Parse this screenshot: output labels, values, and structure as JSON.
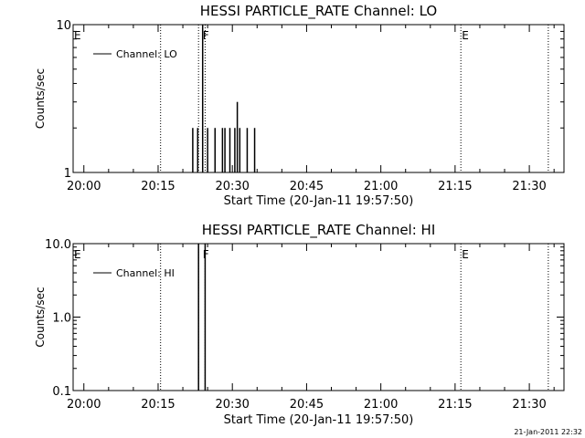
{
  "chart_data": [
    {
      "type": "line",
      "title": "HESSI PARTICLE_RATE Channel: LO",
      "xlabel": "Start Time (20-Jan-11 19:57:50)",
      "ylabel": "Counts/sec",
      "yscale": "log",
      "ylim": [
        1,
        10
      ],
      "ytick_labels": [
        "1",
        "10"
      ],
      "yticks": [
        1,
        10
      ],
      "x_range_minutes_of_day": [
        1197.83,
        1297.0
      ],
      "xtick_labels": [
        "20:00",
        "20:15",
        "20:30",
        "20:45",
        "21:00",
        "21:15",
        "21:30"
      ],
      "legend": {
        "label": "Channel: LO",
        "position": "top-left"
      },
      "event_markers": [
        {
          "label": "E",
          "time": "19:57:50"
        },
        {
          "label": "F",
          "time": "20:23:50"
        },
        {
          "label": "E",
          "time": "21:16:10"
        }
      ],
      "vertical_lines_at": [
        "20:15:30",
        "20:23:10",
        "20:24:30",
        "21:16:10",
        "21:33:50"
      ],
      "series": [
        {
          "name": "Channel: LO",
          "x": [
            "20:21:30",
            "20:22:00",
            "20:22:30",
            "20:23:00",
            "20:23:30",
            "20:24:00",
            "20:24:30",
            "20:25:00",
            "20:25:30",
            "20:26:00",
            "20:26:30",
            "20:27:00",
            "20:27:30",
            "20:28:00",
            "20:28:30",
            "20:29:00",
            "20:29:30",
            "20:30:00",
            "20:30:30",
            "20:31:00",
            "20:31:30",
            "20:32:00",
            "20:32:30",
            "20:33:00",
            "20:33:30",
            "20:34:00",
            "20:34:30",
            "20:35:00"
          ],
          "y": [
            1,
            2,
            1,
            2,
            1,
            10,
            1,
            2,
            1,
            1,
            2,
            1,
            1,
            2,
            2,
            1,
            2,
            1,
            2,
            3,
            2,
            1,
            1,
            2,
            1,
            1,
            2,
            1
          ]
        }
      ]
    },
    {
      "type": "line",
      "title": "HESSI PARTICLE_RATE Channel: HI",
      "xlabel": "Start Time (20-Jan-11 19:57:50)",
      "ylabel": "Counts/sec",
      "yscale": "log",
      "ylim": [
        0.1,
        10
      ],
      "ytick_labels": [
        "0.1",
        "1.0",
        "10.0"
      ],
      "yticks": [
        0.1,
        1,
        10
      ],
      "x_range_minutes_of_day": [
        1197.83,
        1297.0
      ],
      "xtick_labels": [
        "20:00",
        "20:15",
        "20:30",
        "20:45",
        "21:00",
        "21:15",
        "21:30"
      ],
      "legend": {
        "label": "Channel: HI",
        "position": "top-left"
      },
      "event_markers": [
        {
          "label": "E",
          "time": "19:57:50"
        },
        {
          "label": "F",
          "time": "20:23:50"
        },
        {
          "label": "E",
          "time": "21:16:10"
        }
      ],
      "vertical_lines_at": [
        "20:15:30",
        "20:23:10",
        "20:24:30",
        "21:16:10",
        "21:33:50"
      ],
      "series": [
        {
          "name": "Channel: HI",
          "x": [
            "20:23:10",
            "20:24:30"
          ],
          "y": [
            10,
            10
          ]
        }
      ]
    }
  ],
  "footer": {
    "timestamp": "21-Jan-2011 22:32"
  }
}
